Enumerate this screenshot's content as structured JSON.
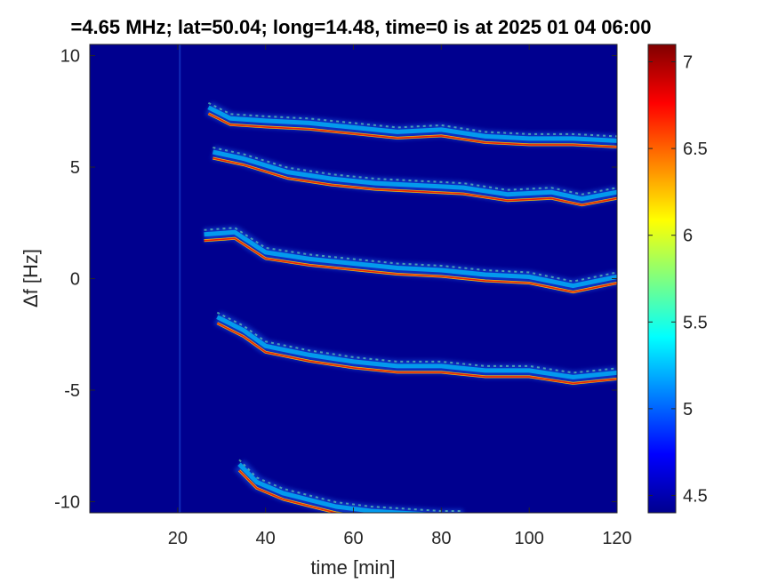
{
  "chart_data": {
    "type": "heatmap",
    "title": "=4.65 MHz;  lat=50.04; long=14.48, time=0 is at 2025 01 04 06:00",
    "xlabel": "time [min]",
    "ylabel": "Δf [Hz]",
    "xlim": [
      0,
      120
    ],
    "ylim": [
      -10.5,
      10.5
    ],
    "x_ticks": [
      20,
      40,
      60,
      80,
      100,
      120
    ],
    "x_tick_labels": [
      "20",
      "40",
      "60",
      "80",
      "100",
      "120"
    ],
    "y_ticks": [
      10,
      5,
      0,
      -5,
      -10
    ],
    "y_tick_labels": [
      "10",
      "5",
      "0",
      "-5",
      "-10"
    ],
    "colorbar": {
      "colormap": "jet",
      "range": [
        4.4,
        7.1
      ],
      "ticks": [
        7,
        6.5,
        6,
        5.5,
        5,
        4.5
      ],
      "tick_labels": [
        "7",
        "6.5",
        "6",
        "5.5",
        "5",
        "4.5"
      ]
    },
    "background_color": "#00008f",
    "series": [
      {
        "x": [
          27,
          32,
          40,
          50,
          60,
          70,
          80,
          90,
          100,
          110,
          120
        ],
        "y": [
          7.4,
          6.9,
          6.8,
          6.7,
          6.5,
          6.3,
          6.4,
          6.1,
          6.0,
          6.0,
          5.9
        ]
      },
      {
        "x": [
          28,
          35,
          45,
          55,
          65,
          75,
          85,
          95,
          105,
          112,
          120
        ],
        "y": [
          5.4,
          5.1,
          4.5,
          4.2,
          4.0,
          3.9,
          3.8,
          3.5,
          3.6,
          3.3,
          3.6
        ]
      },
      {
        "x": [
          26,
          33,
          40,
          50,
          60,
          70,
          80,
          90,
          100,
          110,
          120
        ],
        "y": [
          1.7,
          1.8,
          0.9,
          0.6,
          0.4,
          0.2,
          0.1,
          -0.1,
          -0.2,
          -0.6,
          -0.2
        ]
      },
      {
        "x": [
          29,
          35,
          40,
          50,
          60,
          70,
          80,
          90,
          100,
          110,
          120
        ],
        "y": [
          -2.0,
          -2.6,
          -3.3,
          -3.7,
          -4.0,
          -4.2,
          -4.2,
          -4.4,
          -4.4,
          -4.7,
          -4.5
        ]
      },
      {
        "x": [
          34,
          38,
          44,
          50,
          56,
          64,
          72,
          80,
          85
        ],
        "y": [
          -8.6,
          -9.4,
          -9.9,
          -10.2,
          -10.5,
          -10.7,
          -10.8,
          -10.9,
          -10.9
        ]
      }
    ],
    "vertical_artifact_x": 20.5
  }
}
